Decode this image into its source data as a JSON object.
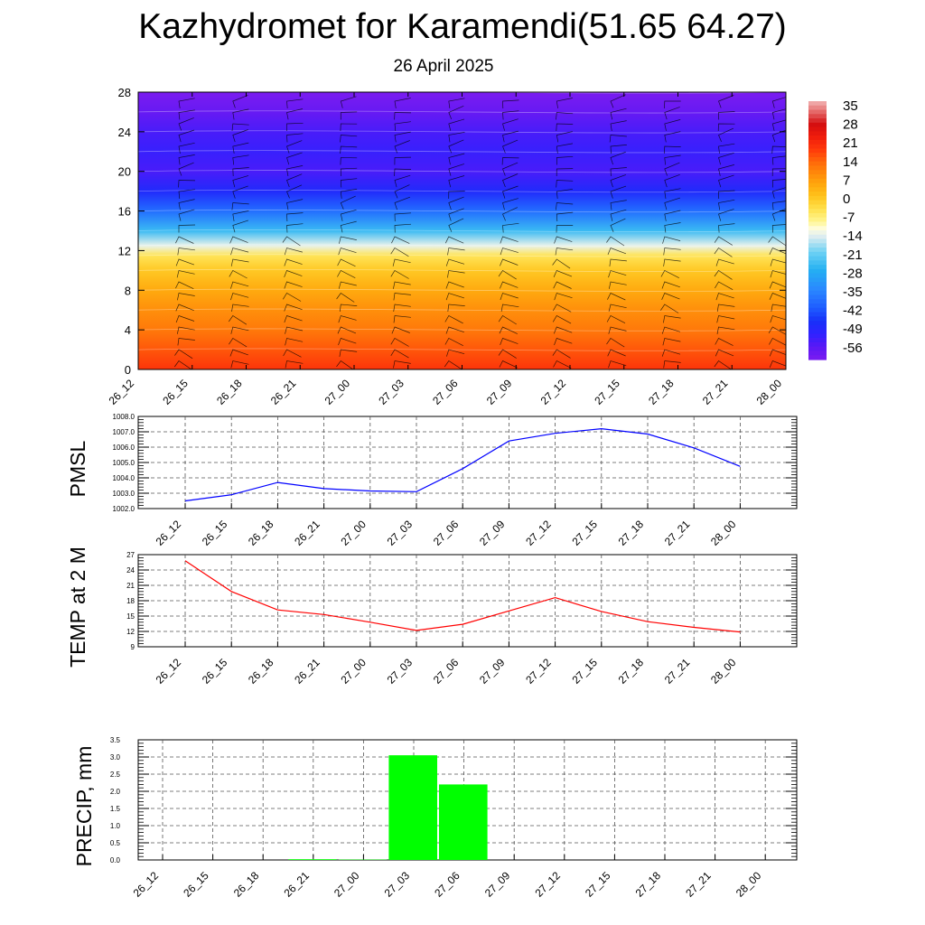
{
  "title": "Kazhydromet for Karamendi(51.65 64.27)",
  "subtitle": "26 April 2025",
  "chart_data": [
    {
      "type": "heatmap",
      "name": "cross-section",
      "x_categories": [
        "26_12",
        "26_15",
        "26_18",
        "26_21",
        "27_00",
        "27_03",
        "27_06",
        "27_09",
        "27_12",
        "27_15",
        "27_18",
        "27_21",
        "28_00"
      ],
      "y_ticks": [
        0,
        4,
        8,
        12,
        16,
        20,
        24,
        28
      ],
      "ylim": [
        0,
        28
      ],
      "color_scale": {
        "labels": [
          35,
          28,
          21,
          14,
          7,
          0,
          -7,
          -14,
          -21,
          -28,
          -35,
          -42,
          -49,
          -56
        ],
        "range": [
          -63,
          38
        ],
        "stops": [
          {
            "v": -63,
            "c": "#7a1cf0"
          },
          {
            "v": -58,
            "c": "#5a18f5"
          },
          {
            "v": -53,
            "c": "#2f22ff"
          },
          {
            "v": -48,
            "c": "#1830f8"
          },
          {
            "v": -43,
            "c": "#1e5cff"
          },
          {
            "v": -36,
            "c": "#2a86ff"
          },
          {
            "v": -28,
            "c": "#25b0f2"
          },
          {
            "v": -21,
            "c": "#6ed2f4"
          },
          {
            "v": -15,
            "c": "#dcecf0"
          },
          {
            "v": -12,
            "c": "#fffde0"
          },
          {
            "v": -9,
            "c": "#fff590"
          },
          {
            "v": -4,
            "c": "#ffe04a"
          },
          {
            "v": 1,
            "c": "#ffc21a"
          },
          {
            "v": 6,
            "c": "#ffa40c"
          },
          {
            "v": 10,
            "c": "#ff880a"
          },
          {
            "v": 14,
            "c": "#ff6a0a"
          },
          {
            "v": 19,
            "c": "#ff3a0a"
          },
          {
            "v": 24,
            "c": "#f01c0c"
          },
          {
            "v": 29,
            "c": "#d40e10"
          },
          {
            "v": 33,
            "c": "#e25a5a"
          },
          {
            "v": 38,
            "c": "#f2b4b4"
          }
        ]
      },
      "profile": [
        {
          "h": 0,
          "v": 20
        },
        {
          "h": 2,
          "v": 16
        },
        {
          "h": 4,
          "v": 12
        },
        {
          "h": 6,
          "v": 9
        },
        {
          "h": 8,
          "v": 5
        },
        {
          "h": 10,
          "v": 0
        },
        {
          "h": 11.5,
          "v": -5
        },
        {
          "h": 12.5,
          "v": -14
        },
        {
          "h": 14,
          "v": -26
        },
        {
          "h": 16,
          "v": -40
        },
        {
          "h": 18,
          "v": -50
        },
        {
          "h": 20,
          "v": -56
        },
        {
          "h": 22,
          "v": -54
        },
        {
          "h": 24,
          "v": -56
        },
        {
          "h": 26,
          "v": -60
        },
        {
          "h": 28,
          "v": -63
        }
      ]
    },
    {
      "type": "line",
      "name": "pmsl",
      "ylabel": "PMSL",
      "x": [
        "26_12",
        "26_15",
        "26_18",
        "26_21",
        "27_00",
        "27_03",
        "27_06",
        "27_09",
        "27_12",
        "27_15",
        "27_18",
        "27_21",
        "28_00"
      ],
      "series": [
        {
          "values": [
            1002.5,
            1002.9,
            1003.7,
            1003.3,
            1003.15,
            1003.1,
            1004.6,
            1006.4,
            1006.9,
            1007.2,
            1006.85,
            1005.95,
            1004.75
          ],
          "color": "#0000ff"
        }
      ],
      "ylim": [
        1002.0,
        1008.0
      ],
      "y_ticks": [
        "1002.0",
        "1003.0",
        "1004.0",
        "1005.0",
        "1006.0",
        "1007.0",
        "1008.0"
      ],
      "grid": true
    },
    {
      "type": "line",
      "name": "temp",
      "ylabel": "TEMP at 2 M",
      "x": [
        "26_12",
        "26_15",
        "26_18",
        "26_21",
        "27_00",
        "27_03",
        "27_06",
        "27_09",
        "27_12",
        "27_15",
        "27_18",
        "27_21",
        "28_00"
      ],
      "series": [
        {
          "values": [
            25.8,
            19.8,
            16.2,
            15.3,
            13.8,
            12.2,
            13.4,
            16.0,
            18.6,
            15.9,
            13.9,
            12.8,
            11.9
          ],
          "color": "#ff0000"
        }
      ],
      "ylim": [
        9,
        27
      ],
      "y_ticks": [
        "9",
        "12",
        "15",
        "18",
        "21",
        "24",
        "27"
      ],
      "grid": true
    },
    {
      "type": "bar",
      "name": "precip",
      "ylabel": "PRECIP, mm",
      "categories": [
        "26_12",
        "26_15",
        "26_18",
        "26_21",
        "27_00",
        "27_03",
        "27_06",
        "27_09",
        "27_12",
        "27_15",
        "27_18",
        "27_21",
        "28_00"
      ],
      "values": [
        0,
        0,
        0,
        0.02,
        0.01,
        3.05,
        2.2,
        0,
        0,
        0,
        0,
        0,
        0
      ],
      "color": "#00ff00",
      "ylim": [
        0,
        3.5
      ],
      "y_ticks": [
        "0.0",
        "0.5",
        "1.0",
        "1.5",
        "2.0",
        "2.5",
        "3.0",
        "3.5"
      ],
      "grid": true
    }
  ]
}
